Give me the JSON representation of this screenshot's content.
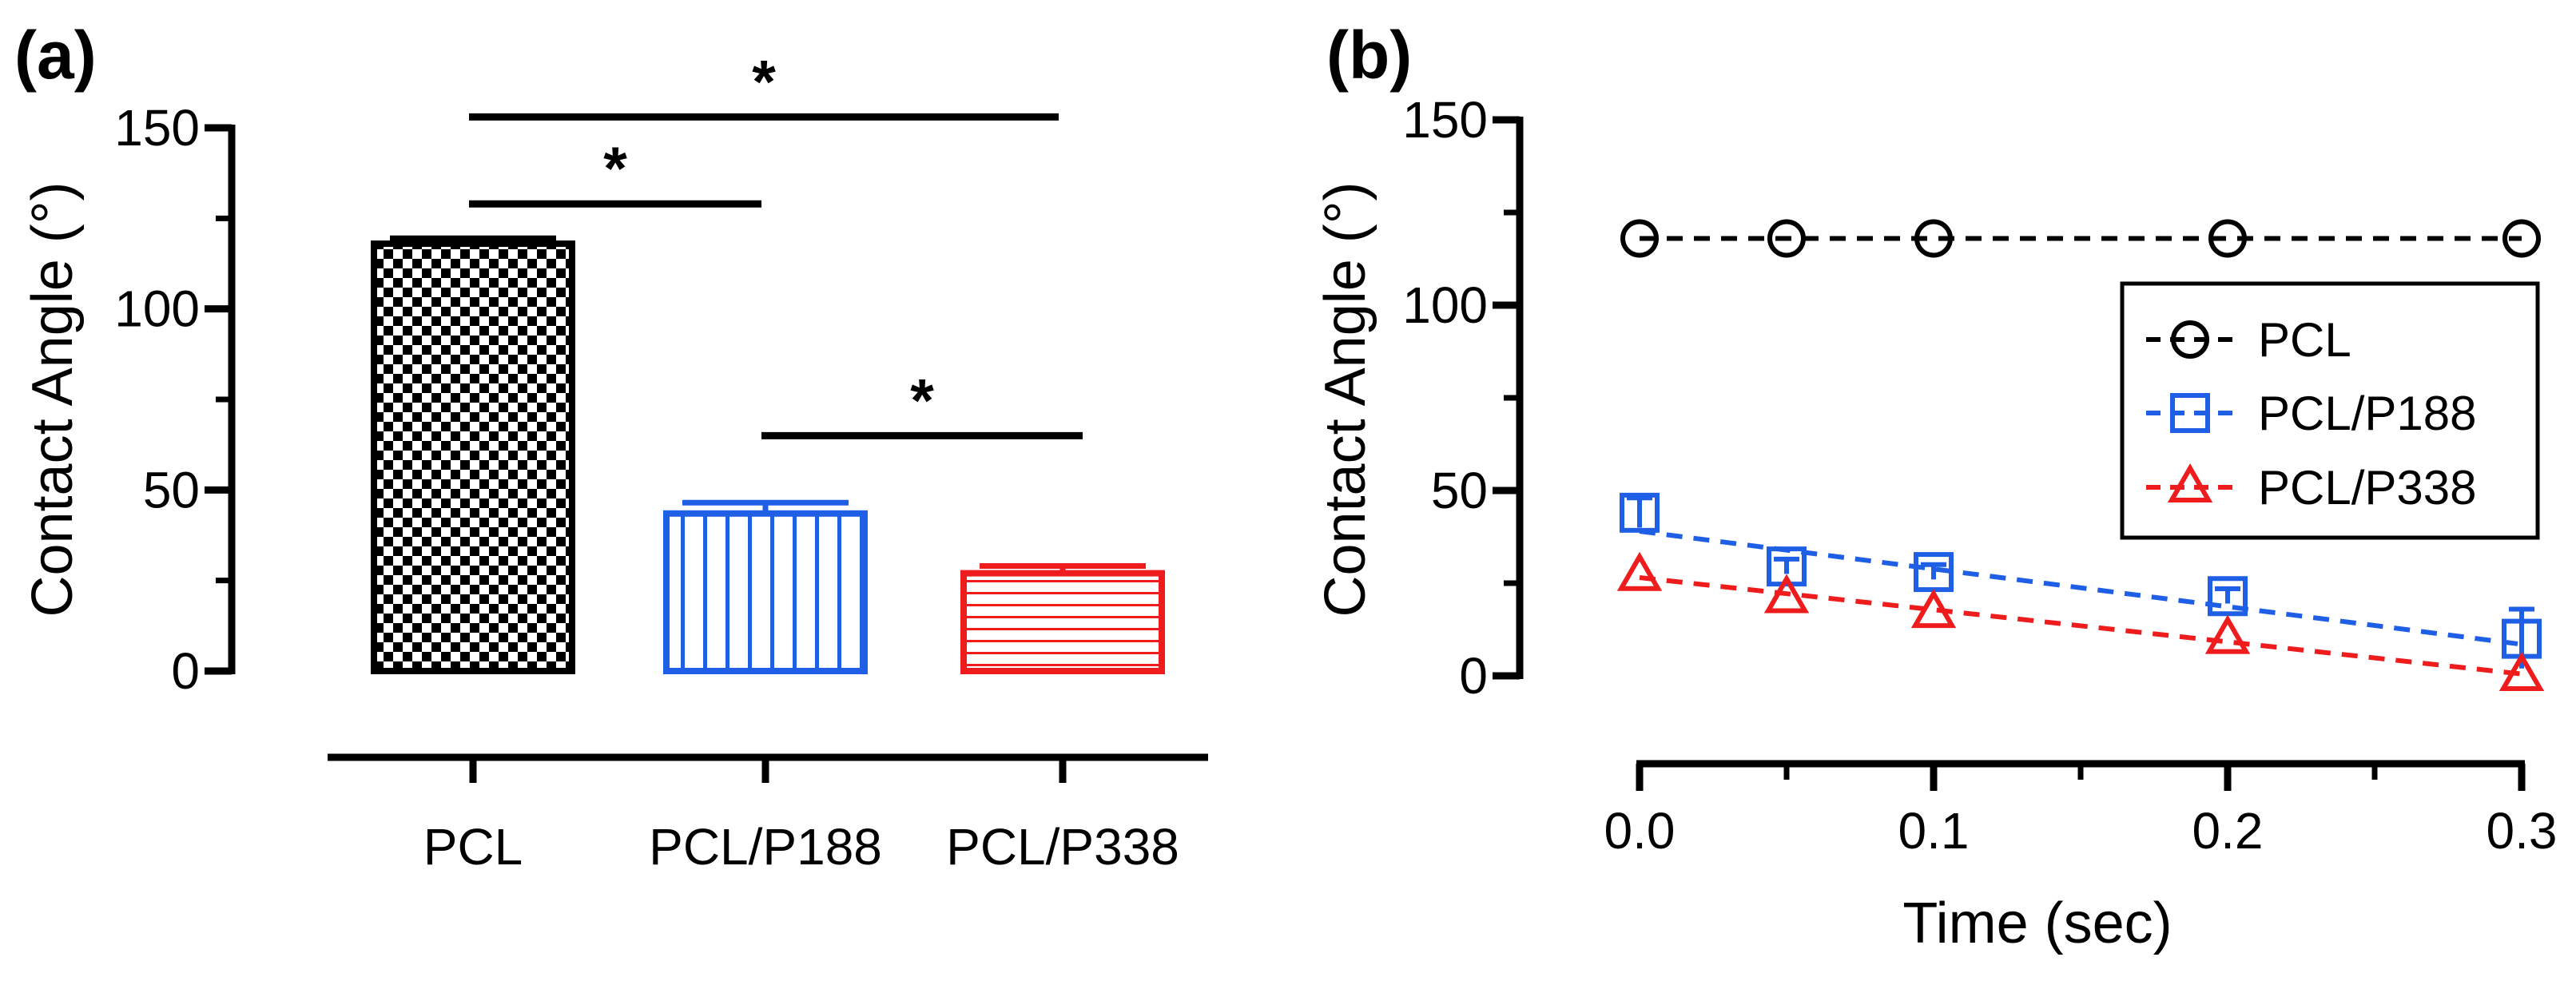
{
  "colors": {
    "pcl": "#000000",
    "p188": "#1f5fe6",
    "p338": "#ee1c1c"
  },
  "chart_data": [
    {
      "id": "a",
      "panel_label": "(a)",
      "type": "bar",
      "ylabel": "Contact Angle (°)",
      "xlabel": "",
      "ylim": [
        0,
        150
      ],
      "yticks": [
        0,
        50,
        100,
        150
      ],
      "ytick_labels": [
        "0",
        "50",
        "100",
        "150"
      ],
      "categories": [
        "PCL",
        "PCL/P188",
        "PCL/P338"
      ],
      "values": [
        118,
        43.5,
        27
      ],
      "errors": [
        1.5,
        3,
        2
      ],
      "patterns": [
        "checker",
        "vertical-stripes",
        "horizontal-stripes"
      ],
      "significance": [
        {
          "from": 0,
          "to": 2,
          "label": "*",
          "y": 153
        },
        {
          "from": 0,
          "to": 1,
          "label": "*",
          "y": 129
        },
        {
          "from": 1,
          "to": 2,
          "label": "*",
          "y": 65
        }
      ]
    },
    {
      "id": "b",
      "panel_label": "(b)",
      "type": "line",
      "ylabel": "Contact Angle (°)",
      "xlabel": "Time (sec)",
      "xlim": [
        0,
        0.3
      ],
      "ylim": [
        0,
        150
      ],
      "xticks": [
        0,
        0.1,
        0.2,
        0.3
      ],
      "xtick_labels": [
        "0.0",
        "0.1",
        "0.2",
        "0.3"
      ],
      "yticks": [
        0,
        50,
        100,
        150
      ],
      "ytick_labels": [
        "0",
        "50",
        "100",
        "150"
      ],
      "legend_position": "right",
      "series": [
        {
          "name": "PCL",
          "marker": "circle",
          "x": [
            0,
            0.05,
            0.1,
            0.2,
            0.3
          ],
          "y": [
            118,
            118,
            118,
            118,
            118
          ],
          "errors": [
            0,
            0,
            0,
            0,
            0
          ],
          "fit": [
            118,
            118
          ]
        },
        {
          "name": "PCL/P188",
          "marker": "square",
          "x": [
            0,
            0.05,
            0.1,
            0.2,
            0.3
          ],
          "y": [
            44,
            29.5,
            28,
            21.5,
            10
          ],
          "errors": [
            4,
            2,
            2,
            2,
            8
          ],
          "fit": [
            39,
            8.5
          ]
        },
        {
          "name": "PCL/P338",
          "marker": "triangle",
          "x": [
            0,
            0.05,
            0.1,
            0.2,
            0.3
          ],
          "y": [
            27,
            21,
            17,
            10,
            0
          ],
          "errors": [
            0,
            0,
            0,
            0,
            0
          ],
          "fit": [
            26.5,
            0.5
          ]
        }
      ]
    }
  ]
}
